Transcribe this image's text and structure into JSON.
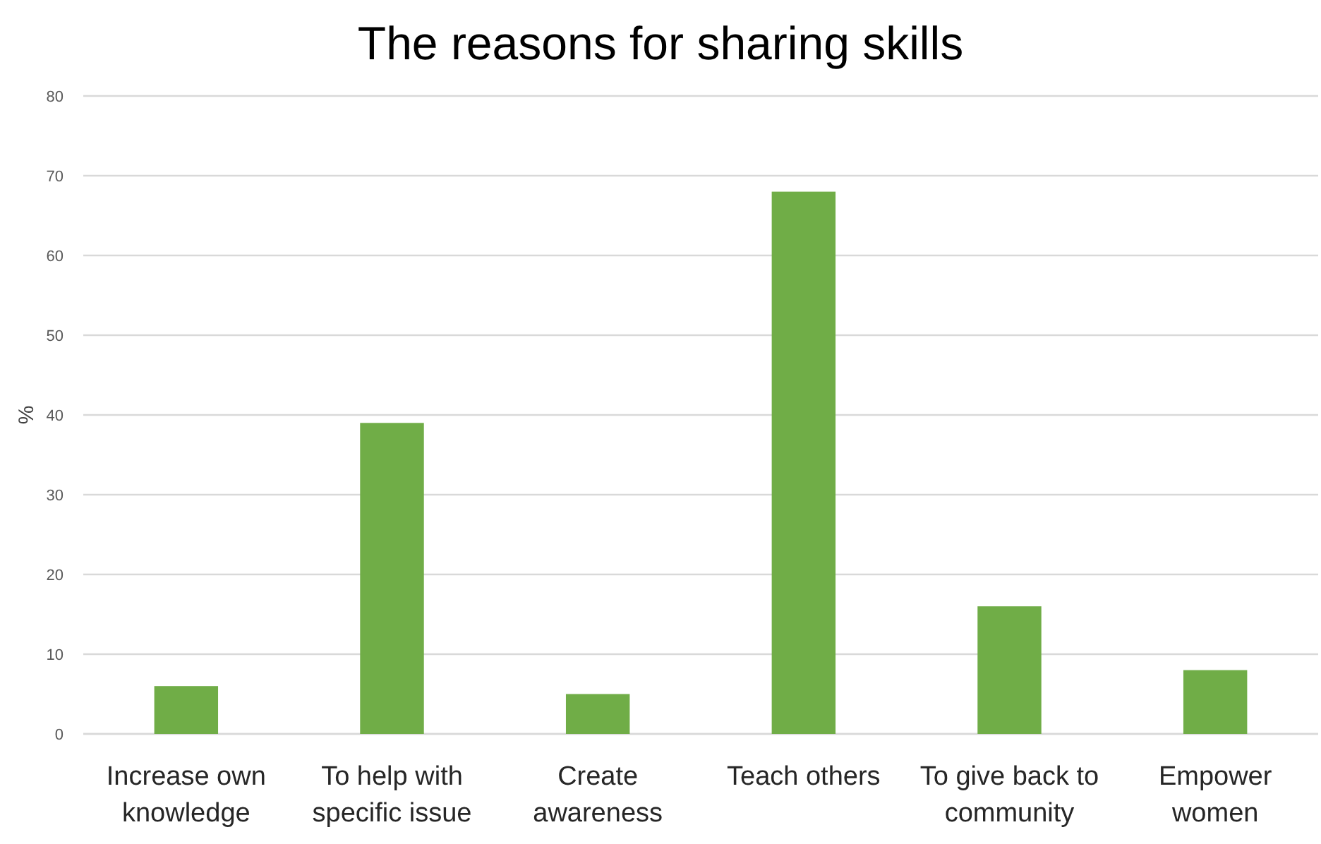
{
  "chart_data": {
    "type": "bar",
    "title": "The reasons for sharing skills",
    "ylabel": "%",
    "categories": [
      "Increase own knowledge",
      "To help with specific issue",
      "Create awareness",
      "Teach others",
      "To give back to community",
      "Empower women"
    ],
    "values": [
      6,
      39,
      5,
      68,
      16,
      8
    ],
    "color": "#70ad47",
    "ylim": [
      0,
      80
    ],
    "yticks": [
      0,
      10,
      20,
      30,
      40,
      50,
      60,
      70,
      80
    ],
    "grid": "y"
  }
}
